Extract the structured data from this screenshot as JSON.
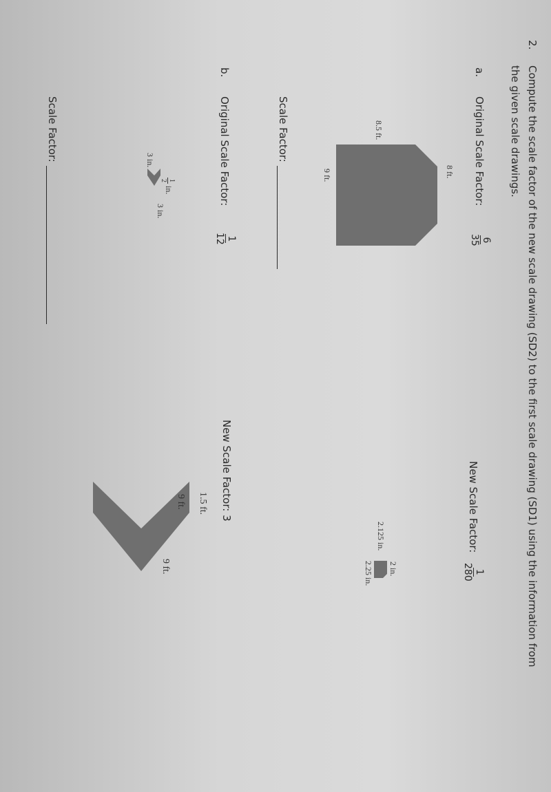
{
  "question": {
    "number": "2.",
    "instruction_line1": "Compute the scale factor of the new scale drawing (SD2) to the first scale drawing (SD1) using the information from",
    "instruction_line2": "the given scale drawings."
  },
  "part_a": {
    "letter": "a.",
    "original_label": "Original Scale Factor:",
    "original_num": "6",
    "original_den": "35",
    "new_label": "New Scale Factor:",
    "new_num": "1",
    "new_den": "280",
    "sd1_left": "8.5 ft.",
    "sd1_top": "8 ft.",
    "sd1_bottom": "9 ft.",
    "sd2_top": "2 in.",
    "sd2_left": "2.125 in.",
    "sd2_bottom": "2.25 in.",
    "answer_label": "Scale Factor:"
  },
  "part_b": {
    "letter": "b.",
    "original_label": "Original Scale Factor:",
    "original_num": "1",
    "original_den": "12",
    "new_label": "New Scale Factor: 3",
    "sd1_top_num": "1",
    "sd1_top_den": "2",
    "sd1_top_unit": "in.",
    "sd1_right": "3 in.",
    "sd1_left": "3 in.",
    "sd2_top": "1.5 ft.",
    "sd2_left": "9 ft.",
    "sd2_right": "9 ft.",
    "answer_label": "Scale Factor:"
  }
}
